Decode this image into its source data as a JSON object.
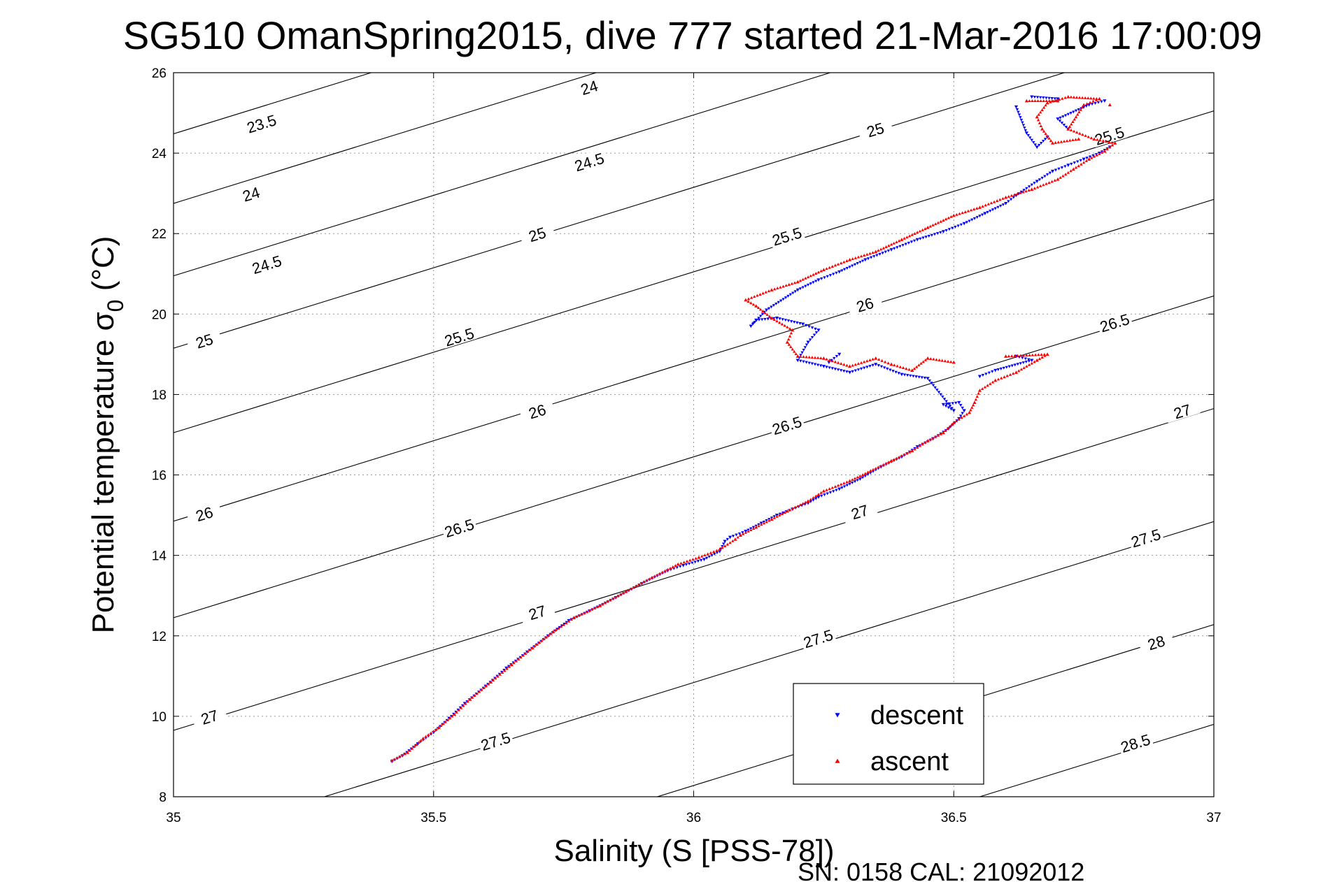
{
  "chart_data": {
    "type": "scatter",
    "title": "SG510 OmanSpring2015, dive 777 started 21-Mar-2016 17:00:09",
    "xlabel": "Salinity (S [PSS-78])",
    "ylabel_main": "Potential temperature σ",
    "ylabel_sub": "0",
    "ylabel_unit": " (°C)",
    "footer": "SN: 0158  CAL: 21092012",
    "xlim": [
      35,
      37
    ],
    "ylim": [
      8,
      26
    ],
    "x_ticks": [
      "35",
      "35.5",
      "36",
      "36.5",
      "37"
    ],
    "y_ticks": [
      "8",
      "10",
      "12",
      "14",
      "16",
      "18",
      "20",
      "22",
      "24",
      "26"
    ],
    "grid": true,
    "legend_position": "bottom-right",
    "contours": [
      {
        "label": "23.5",
        "S0": 35.0,
        "T0": 24.48,
        "slope": 4.0,
        "label_at": [
          35.17,
          24.7
        ]
      },
      {
        "label": "24",
        "S0": 35.0,
        "T0": 22.75,
        "slope": 4.0,
        "label_at": [
          35.15,
          22.95
        ],
        "label_at2": [
          35.8,
          25.6
        ]
      },
      {
        "label": "24.5",
        "S0": 35.0,
        "T0": 20.95,
        "slope": 4.0,
        "label_at": [
          35.18,
          21.2
        ],
        "label_at2": [
          35.8,
          23.75
        ],
        "label_at3": [
          36.45,
          26.3
        ]
      },
      {
        "label": "25",
        "S0": 35.0,
        "T0": 19.15,
        "slope": 4.0,
        "label_at": [
          35.06,
          19.3
        ],
        "label_at2": [
          35.7,
          21.95
        ],
        "label_at3": [
          36.35,
          24.55
        ]
      },
      {
        "label": "25.5",
        "S0": 35.0,
        "T0": 17.05,
        "slope": 4.0,
        "label_at": [
          35.55,
          19.4
        ],
        "label_at2": [
          36.18,
          21.9
        ],
        "label_at3": [
          36.8,
          24.4
        ]
      },
      {
        "label": "26",
        "S0": 35.0,
        "T0": 14.85,
        "slope": 4.0,
        "label_at": [
          35.06,
          15.0
        ],
        "label_at2": [
          35.7,
          17.55
        ],
        "label_at3": [
          36.33,
          20.2
        ]
      },
      {
        "label": "26.5",
        "S0": 35.0,
        "T0": 12.45,
        "slope": 4.0,
        "label_at": [
          35.55,
          14.65
        ],
        "label_at2": [
          36.18,
          17.2
        ],
        "label_at3": [
          36.81,
          19.75
        ]
      },
      {
        "label": "27",
        "S0": 35.0,
        "T0": 9.65,
        "slope": 4.0,
        "label_at": [
          35.07,
          9.95
        ],
        "label_at2": [
          35.7,
          12.55
        ],
        "label_at3": [
          36.32,
          15.05
        ],
        "label_at4": [
          36.94,
          17.55
        ]
      },
      {
        "label": "27.5",
        "S0": 35.29,
        "T0": 8.0,
        "slope": 4.0,
        "label_at": [
          35.62,
          9.35
        ],
        "label_at2": [
          36.24,
          11.9
        ],
        "label_at3": [
          36.87,
          14.4
        ]
      },
      {
        "label": "28",
        "S0": 35.93,
        "T0": 8.0,
        "slope": 4.0,
        "label_at": [
          36.89,
          11.8
        ]
      },
      {
        "label": "28.5",
        "S0": 36.55,
        "T0": 8.0,
        "slope": 4.0,
        "label_at": [
          36.85,
          9.3
        ]
      }
    ],
    "series": [
      {
        "name": "descent",
        "color": "#0000ff",
        "marker": "triangle-down",
        "points": [
          [
            35.42,
            8.88
          ],
          [
            35.44,
            9.02
          ],
          [
            35.47,
            9.32
          ],
          [
            35.5,
            9.6
          ],
          [
            35.53,
            9.95
          ],
          [
            35.56,
            10.32
          ],
          [
            35.6,
            10.75
          ],
          [
            35.64,
            11.2
          ],
          [
            35.68,
            11.6
          ],
          [
            35.72,
            12.0
          ],
          [
            35.76,
            12.38
          ],
          [
            35.8,
            12.62
          ],
          [
            35.85,
            12.95
          ],
          [
            35.9,
            13.3
          ],
          [
            35.95,
            13.62
          ],
          [
            35.98,
            13.75
          ],
          [
            36.02,
            13.9
          ],
          [
            36.05,
            14.1
          ],
          [
            36.06,
            14.35
          ],
          [
            36.07,
            14.45
          ],
          [
            36.1,
            14.6
          ],
          [
            36.13,
            14.8
          ],
          [
            36.16,
            15.0
          ],
          [
            36.19,
            15.15
          ],
          [
            36.22,
            15.3
          ],
          [
            36.24,
            15.45
          ],
          [
            36.28,
            15.65
          ],
          [
            36.32,
            15.9
          ],
          [
            36.36,
            16.2
          ],
          [
            36.4,
            16.45
          ],
          [
            36.43,
            16.7
          ],
          [
            36.46,
            16.9
          ],
          [
            36.49,
            17.15
          ],
          [
            36.51,
            17.4
          ],
          [
            36.52,
            17.6
          ],
          [
            36.51,
            17.8
          ],
          [
            36.48,
            17.75
          ],
          [
            36.5,
            17.6
          ],
          [
            36.45,
            18.4
          ],
          [
            36.4,
            18.5
          ],
          [
            36.35,
            18.75
          ],
          [
            36.3,
            18.55
          ],
          [
            36.25,
            18.7
          ],
          [
            36.2,
            18.85
          ],
          [
            36.22,
            19.3
          ],
          [
            36.24,
            19.6
          ],
          [
            36.21,
            19.75
          ],
          [
            36.16,
            19.9
          ],
          [
            36.12,
            19.85
          ],
          [
            36.11,
            19.7
          ],
          [
            36.14,
            20.1
          ],
          [
            36.2,
            20.6
          ],
          [
            36.24,
            20.85
          ],
          [
            36.28,
            21.05
          ],
          [
            36.33,
            21.35
          ],
          [
            36.38,
            21.6
          ],
          [
            36.43,
            21.85
          ],
          [
            36.48,
            22.05
          ],
          [
            36.52,
            22.25
          ],
          [
            36.56,
            22.5
          ],
          [
            36.6,
            22.75
          ],
          [
            36.62,
            22.95
          ],
          [
            36.66,
            23.3
          ],
          [
            36.69,
            23.55
          ],
          [
            36.72,
            23.7
          ],
          [
            36.75,
            23.85
          ],
          [
            36.78,
            24.0
          ],
          [
            36.8,
            24.15
          ],
          [
            36.72,
            24.6
          ],
          [
            36.7,
            24.85
          ],
          [
            36.76,
            25.2
          ],
          [
            36.79,
            25.3
          ],
          [
            36.7,
            25.35
          ],
          [
            36.65,
            25.4
          ],
          [
            36.68,
            24.4
          ],
          [
            36.66,
            24.15
          ],
          [
            36.64,
            24.5
          ],
          [
            36.62,
            25.15
          ],
          [
            36.55,
            18.45
          ],
          [
            36.58,
            18.6
          ],
          [
            36.65,
            18.85
          ],
          [
            36.62,
            18.95
          ],
          [
            36.28,
            19.0
          ],
          [
            36.26,
            18.8
          ]
        ]
      },
      {
        "name": "ascent",
        "color": "#ff0000",
        "marker": "triangle-up",
        "points": [
          [
            35.42,
            8.9
          ],
          [
            35.45,
            9.1
          ],
          [
            35.48,
            9.45
          ],
          [
            35.51,
            9.72
          ],
          [
            35.54,
            10.05
          ],
          [
            35.57,
            10.42
          ],
          [
            35.61,
            10.85
          ],
          [
            35.65,
            11.28
          ],
          [
            35.69,
            11.7
          ],
          [
            35.73,
            12.1
          ],
          [
            35.77,
            12.45
          ],
          [
            35.82,
            12.75
          ],
          [
            35.87,
            13.1
          ],
          [
            35.92,
            13.45
          ],
          [
            35.97,
            13.78
          ],
          [
            36.01,
            13.95
          ],
          [
            36.05,
            14.15
          ],
          [
            36.08,
            14.4
          ],
          [
            36.09,
            14.5
          ],
          [
            36.12,
            14.7
          ],
          [
            36.15,
            14.9
          ],
          [
            36.18,
            15.1
          ],
          [
            36.22,
            15.35
          ],
          [
            36.25,
            15.6
          ],
          [
            36.3,
            15.85
          ],
          [
            36.34,
            16.1
          ],
          [
            36.38,
            16.35
          ],
          [
            36.42,
            16.6
          ],
          [
            36.45,
            16.85
          ],
          [
            36.48,
            17.05
          ],
          [
            36.5,
            17.3
          ],
          [
            36.53,
            17.55
          ],
          [
            36.54,
            17.8
          ],
          [
            36.55,
            18.1
          ],
          [
            36.58,
            18.35
          ],
          [
            36.62,
            18.55
          ],
          [
            36.66,
            18.85
          ],
          [
            36.68,
            19.0
          ],
          [
            36.6,
            18.95
          ],
          [
            36.5,
            18.8
          ],
          [
            36.45,
            18.9
          ],
          [
            36.42,
            18.6
          ],
          [
            36.38,
            18.75
          ],
          [
            36.35,
            18.9
          ],
          [
            36.3,
            18.7
          ],
          [
            36.25,
            18.9
          ],
          [
            36.2,
            18.95
          ],
          [
            36.18,
            19.3
          ],
          [
            36.19,
            19.6
          ],
          [
            36.15,
            19.9
          ],
          [
            36.12,
            20.2
          ],
          [
            36.1,
            20.35
          ],
          [
            36.15,
            20.6
          ],
          [
            36.2,
            20.8
          ],
          [
            36.25,
            21.1
          ],
          [
            36.3,
            21.35
          ],
          [
            36.35,
            21.55
          ],
          [
            36.4,
            21.85
          ],
          [
            36.45,
            22.15
          ],
          [
            36.5,
            22.45
          ],
          [
            36.55,
            22.65
          ],
          [
            36.6,
            22.9
          ],
          [
            36.65,
            23.1
          ],
          [
            36.7,
            23.35
          ],
          [
            36.73,
            23.6
          ],
          [
            36.76,
            23.85
          ],
          [
            36.79,
            24.05
          ],
          [
            36.81,
            24.25
          ],
          [
            36.77,
            24.35
          ],
          [
            36.72,
            24.6
          ],
          [
            36.75,
            25.2
          ],
          [
            36.78,
            25.35
          ],
          [
            36.72,
            25.4
          ],
          [
            36.68,
            25.25
          ],
          [
            36.66,
            24.9
          ],
          [
            36.67,
            24.6
          ],
          [
            36.69,
            24.25
          ],
          [
            36.74,
            24.35
          ],
          [
            36.8,
            25.2
          ],
          [
            36.7,
            25.3
          ],
          [
            36.64,
            25.3
          ]
        ]
      }
    ]
  }
}
